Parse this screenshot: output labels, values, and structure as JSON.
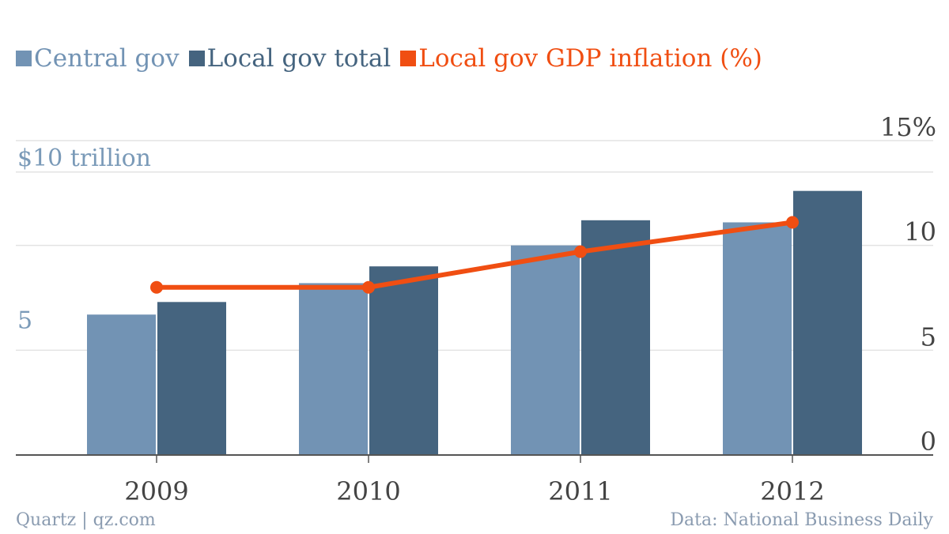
{
  "chart_data": {
    "type": "bar",
    "categories": [
      "2009",
      "2010",
      "2011",
      "2012"
    ],
    "series": [
      {
        "name": "Central gov",
        "kind": "bar",
        "axis": "left",
        "color": "#7293b4",
        "values": [
          6.7,
          8.2,
          10.0,
          11.1
        ]
      },
      {
        "name": "Local gov total",
        "kind": "bar",
        "axis": "left",
        "color": "#45647f",
        "values": [
          7.3,
          9.0,
          11.2,
          12.6
        ]
      },
      {
        "name": "Local gov GDP inflation (%)",
        "kind": "line",
        "axis": "right",
        "color": "#f04e12",
        "values": [
          8.0,
          8.0,
          9.7,
          11.1
        ]
      }
    ],
    "left_axis": {
      "unit_label": "$10 trillion",
      "ticks": [
        {
          "value": 5,
          "label": "5"
        }
      ],
      "ylim": [
        0,
        15
      ]
    },
    "right_axis": {
      "ticks": [
        {
          "value": 0,
          "label": "0"
        },
        {
          "value": 5,
          "label": "5"
        },
        {
          "value": 10,
          "label": "10"
        },
        {
          "value": 15,
          "label": "15%"
        }
      ],
      "ylim": [
        0,
        15
      ]
    },
    "grid": true,
    "legend": "top-left"
  },
  "footer": {
    "source_left": "Quartz | qz.com",
    "source_right": "Data: National Business Daily"
  }
}
